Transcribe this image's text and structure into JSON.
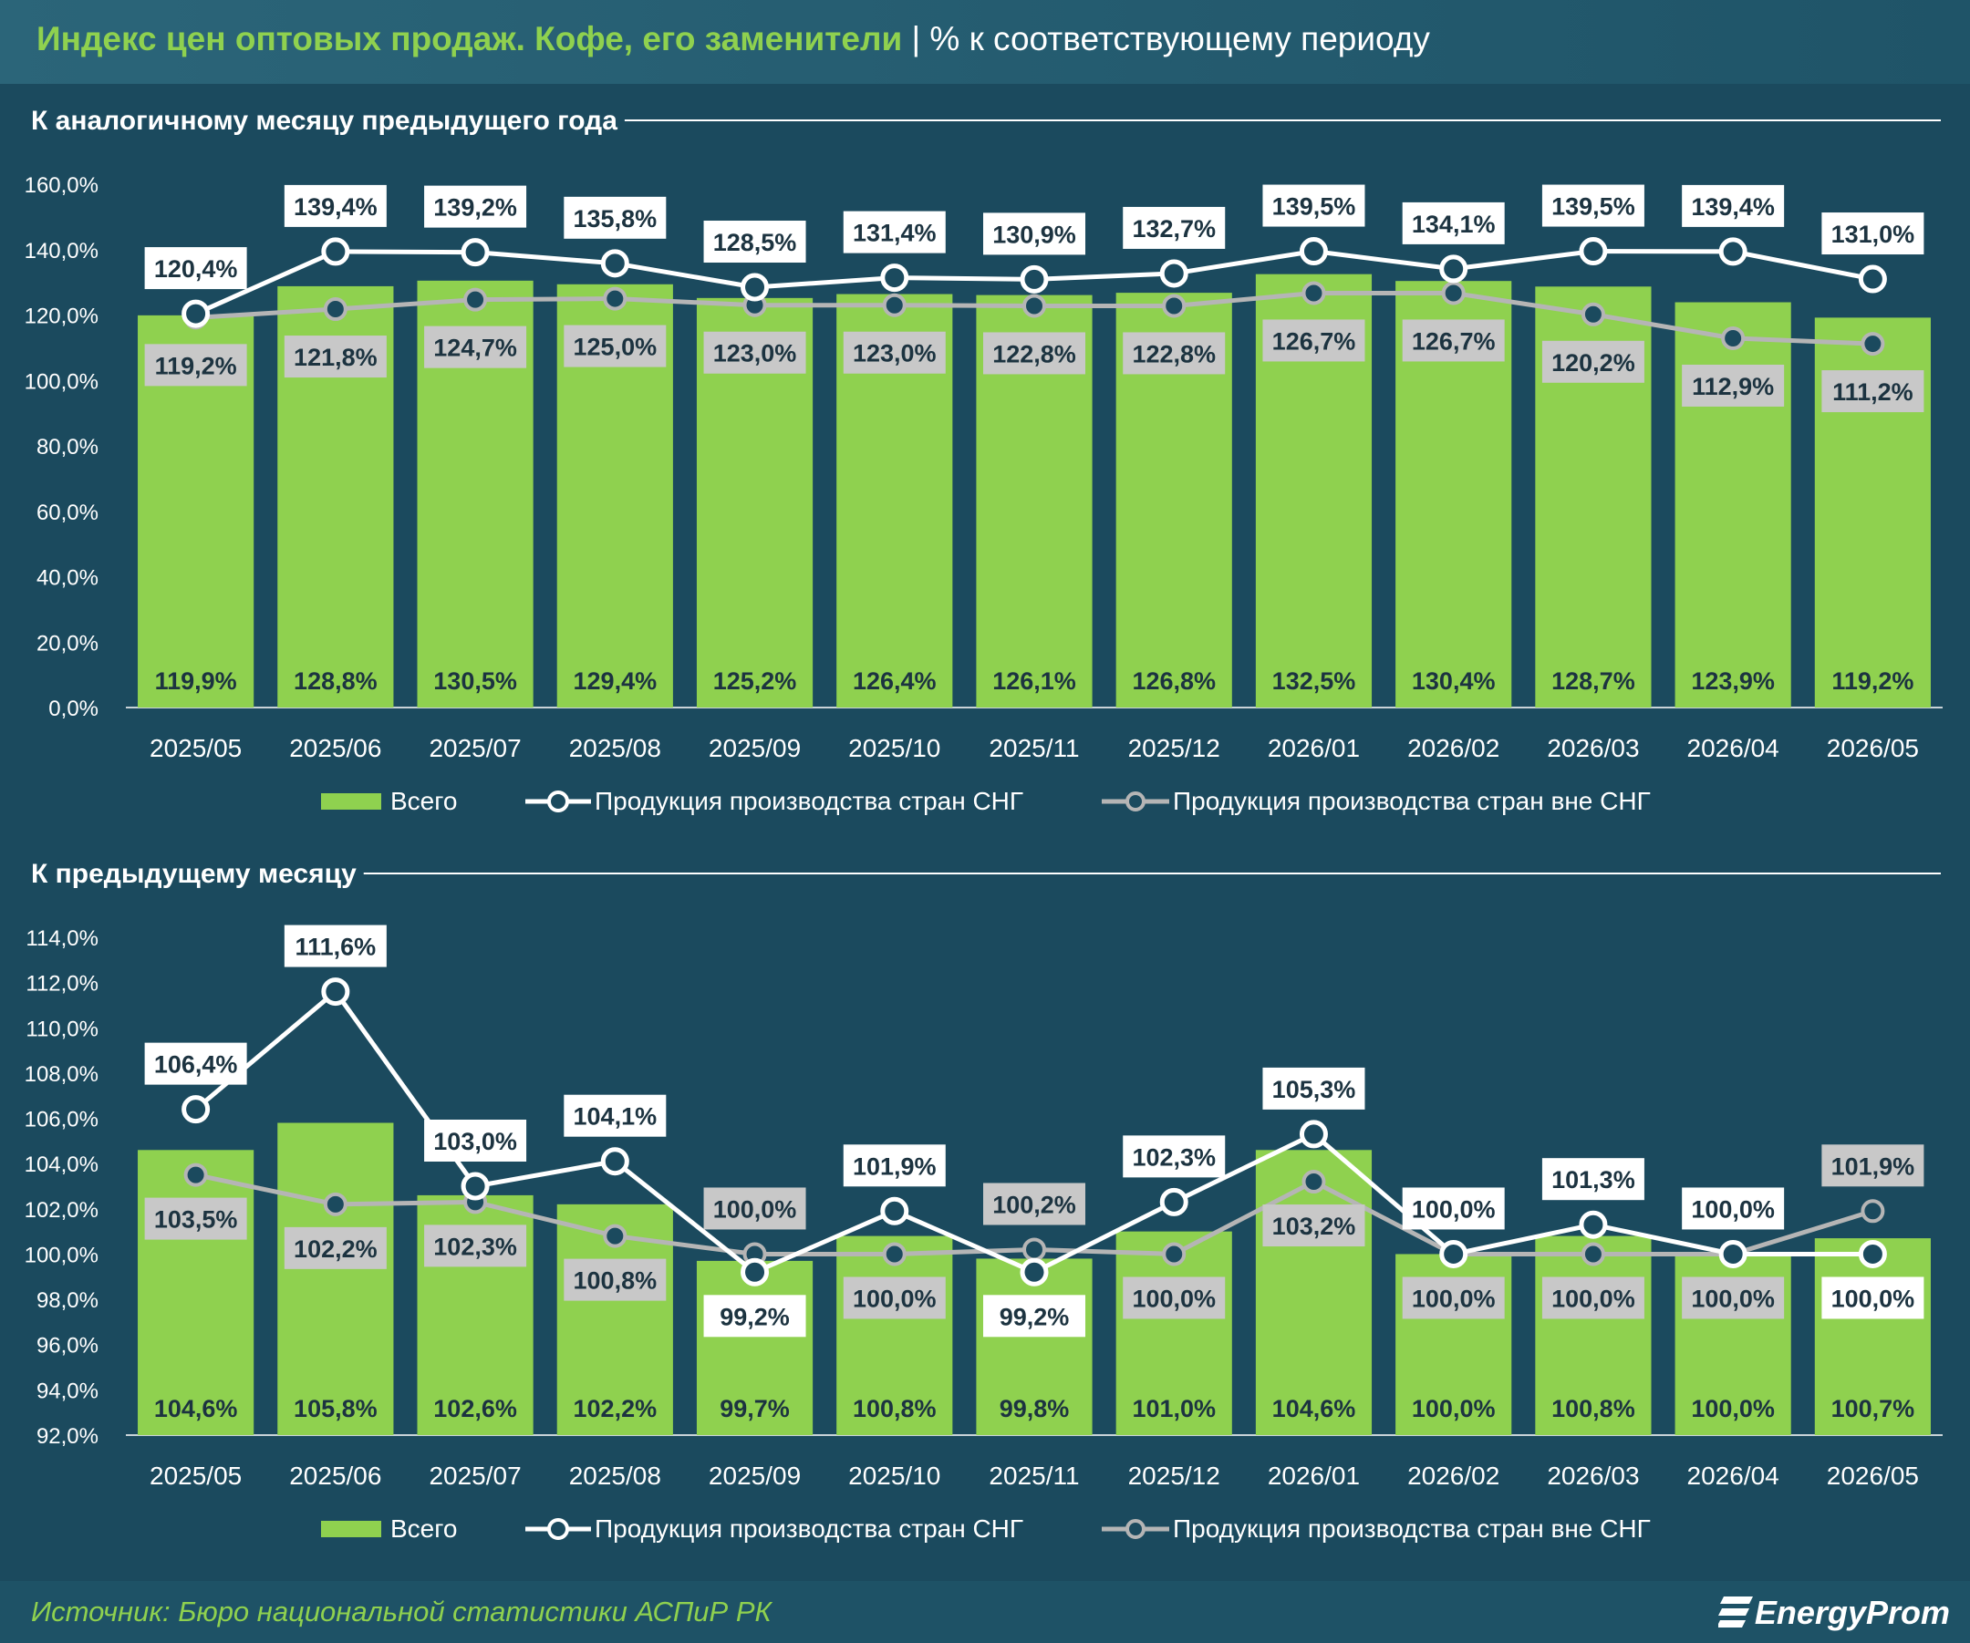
{
  "title": {
    "main": "Индекс цен оптовых продаж. Кофе, его заменители",
    "separator": "|",
    "sub": "% к соответствующему периоду"
  },
  "source": "Источник: Бюро национальной статистики АСПиР РК",
  "logo": "EnergyProm",
  "colors": {
    "background": "#1b4a5e",
    "bar": "#8fd14f",
    "cis_line": "#ffffff",
    "non_cis_line": "#b5b5b5",
    "title_accent": "#8fd14f"
  },
  "chart_data": [
    {
      "type": "bar",
      "section_title": "К аналогичному месяцу предыдущего года",
      "categories": [
        "2025/05",
        "2025/06",
        "2025/07",
        "2025/08",
        "2025/09",
        "2025/10",
        "2025/11",
        "2025/12",
        "2026/01",
        "2026/02",
        "2026/03",
        "2026/04",
        "2026/05"
      ],
      "ylim": [
        0,
        160
      ],
      "yticks": [
        0,
        20,
        40,
        60,
        80,
        100,
        120,
        140,
        160
      ],
      "ytick_labels": [
        "0,0%",
        "20,0%",
        "40,0%",
        "60,0%",
        "80,0%",
        "100,0%",
        "120,0%",
        "140,0%",
        "160,0%"
      ],
      "grid": false,
      "legend_position": "bottom",
      "series": [
        {
          "name": "Всего",
          "kind": "bar",
          "values": [
            119.9,
            128.8,
            130.5,
            129.4,
            125.2,
            126.4,
            126.1,
            126.8,
            132.5,
            130.4,
            128.7,
            123.9,
            119.2
          ],
          "labels": [
            "119,9%",
            "128,8%",
            "130,5%",
            "129,4%",
            "125,2%",
            "126,4%",
            "126,1%",
            "126,8%",
            "132,5%",
            "130,4%",
            "128,7%",
            "123,9%",
            "119,2%"
          ]
        },
        {
          "name": "Продукция производства стран СНГ",
          "kind": "line",
          "values": [
            120.4,
            139.4,
            139.2,
            135.8,
            128.5,
            131.4,
            130.9,
            132.7,
            139.5,
            134.1,
            139.5,
            139.4,
            131.0
          ],
          "labels": [
            "120,4%",
            "139,4%",
            "139,2%",
            "135,8%",
            "128,5%",
            "131,4%",
            "130,9%",
            "132,7%",
            "139,5%",
            "134,1%",
            "139,5%",
            "139,4%",
            "131,0%"
          ]
        },
        {
          "name": "Продукция производства стран вне СНГ",
          "kind": "line",
          "values": [
            119.2,
            121.8,
            124.7,
            125.0,
            123.0,
            123.0,
            122.8,
            122.8,
            126.7,
            126.7,
            120.2,
            112.9,
            111.2
          ],
          "labels": [
            "119,2%",
            "121,8%",
            "124,7%",
            "125,0%",
            "123,0%",
            "123,0%",
            "122,8%",
            "122,8%",
            "126,7%",
            "126,7%",
            "120,2%",
            "112,9%",
            "111,2%"
          ]
        }
      ]
    },
    {
      "type": "bar",
      "section_title": "К предыдущему месяцу",
      "categories": [
        "2025/05",
        "2025/06",
        "2025/07",
        "2025/08",
        "2025/09",
        "2025/10",
        "2025/11",
        "2025/12",
        "2026/01",
        "2026/02",
        "2026/03",
        "2026/04",
        "2026/05"
      ],
      "ylim": [
        92,
        114
      ],
      "yticks": [
        92,
        94,
        96,
        98,
        100,
        102,
        104,
        106,
        108,
        110,
        112,
        114
      ],
      "ytick_labels": [
        "92,0%",
        "94,0%",
        "96,0%",
        "98,0%",
        "100,0%",
        "102,0%",
        "104,0%",
        "106,0%",
        "108,0%",
        "110,0%",
        "112,0%",
        "114,0%"
      ],
      "grid": false,
      "legend_position": "bottom",
      "series": [
        {
          "name": "Всего",
          "kind": "bar",
          "values": [
            104.6,
            105.8,
            102.6,
            102.2,
            99.7,
            100.8,
            99.8,
            101.0,
            104.6,
            100.0,
            100.8,
            100.0,
            100.7
          ],
          "labels": [
            "104,6%",
            "105,8%",
            "102,6%",
            "102,2%",
            "99,7%",
            "100,8%",
            "99,8%",
            "101,0%",
            "104,6%",
            "100,0%",
            "100,8%",
            "100,0%",
            "100,7%"
          ]
        },
        {
          "name": "Продукция производства стран СНГ",
          "kind": "line",
          "values": [
            106.4,
            111.6,
            103.0,
            104.1,
            99.2,
            101.9,
            99.2,
            102.3,
            105.3,
            100.0,
            101.3,
            100.0,
            100.0
          ],
          "labels": [
            "106,4%",
            "111,6%",
            "103,0%",
            "104,1%",
            "99,2%",
            "101,9%",
            "99,2%",
            "102,3%",
            "105,3%",
            "100,0%",
            "101,3%",
            "100,0%",
            "100,0%"
          ]
        },
        {
          "name": "Продукция производства стран вне СНГ",
          "kind": "line",
          "values": [
            103.5,
            102.2,
            102.3,
            100.8,
            100.0,
            100.0,
            100.2,
            100.0,
            103.2,
            100.0,
            100.0,
            100.0,
            101.9
          ],
          "labels": [
            "103,5%",
            "102,2%",
            "102,3%",
            "100,8%",
            "100,0%",
            "100,0%",
            "100,2%",
            "100,0%",
            "103,2%",
            "100,0%",
            "100,0%",
            "100,0%",
            "101,9%"
          ]
        }
      ]
    }
  ]
}
